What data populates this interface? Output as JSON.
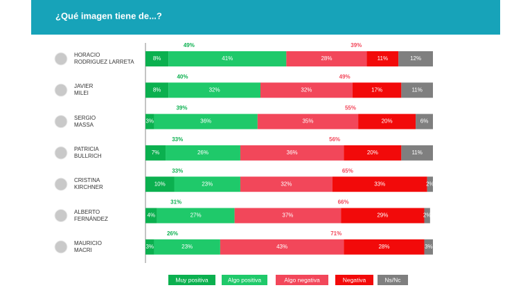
{
  "chart_data": {
    "type": "stacked-bar",
    "orientation": "horizontal",
    "title": "¿Qué imagen tiene de...?",
    "categories": [
      "HORACIO\nRODRIGUEZ LARRETA",
      "JAVIER\nMILEI",
      "SERGIO\nMASSA",
      "PATRICIA\nBULLRICH",
      "CRISTINA\nKIRCHNER",
      "ALBERTO\nFERNÁNDEZ",
      "MAURICIO\nMACRI"
    ],
    "xlim": [
      0,
      100
    ],
    "series": [
      {
        "name": "Muy positiva",
        "color": "#0bb04f",
        "values": [
          8,
          8,
          3,
          7,
          10,
          4,
          3
        ],
        "value_labels": [
          "8%",
          "8%",
          "3%",
          "7%",
          "10%",
          "4%",
          "3%"
        ]
      },
      {
        "name": "Algo positiva",
        "color": "#1fc96a",
        "values": [
          41,
          32,
          36,
          26,
          23,
          27,
          23
        ],
        "value_labels": [
          "41%",
          "32%",
          "36%",
          "26%",
          "23%",
          "27%",
          "23%"
        ]
      },
      {
        "name": "Algo negativa",
        "color": "#f2475a",
        "values": [
          28,
          32,
          35,
          36,
          32,
          37,
          43
        ],
        "value_labels": [
          "28%",
          "32%",
          "35%",
          "36%",
          "32%",
          "37%",
          "43%"
        ]
      },
      {
        "name": "Negativa",
        "color": "#f20a0a",
        "values": [
          11,
          17,
          20,
          20,
          33,
          29,
          28
        ],
        "value_labels": [
          "11%",
          "17%",
          "20%",
          "20%",
          "33%",
          "29%",
          "28%"
        ]
      },
      {
        "name": "Ns/Nc",
        "color": "#7f7f7f",
        "values": [
          12,
          11,
          6,
          11,
          2,
          2,
          3
        ],
        "value_labels": [
          "12%",
          "11%",
          "6%",
          "11%",
          "2%",
          "2%",
          "3%"
        ]
      }
    ],
    "positive_totals": {
      "color": "#0bb04f",
      "values": [
        49,
        40,
        39,
        33,
        33,
        31,
        26
      ],
      "value_labels": [
        "49%",
        "40%",
        "39%",
        "33%",
        "33%",
        "31%",
        "26%"
      ]
    },
    "negative_totals": {
      "color": "#f2475a",
      "values": [
        39,
        49,
        55,
        56,
        65,
        66,
        71
      ],
      "value_labels": [
        "39%",
        "49%",
        "55%",
        "56%",
        "65%",
        "66%",
        "71%"
      ]
    }
  }
}
